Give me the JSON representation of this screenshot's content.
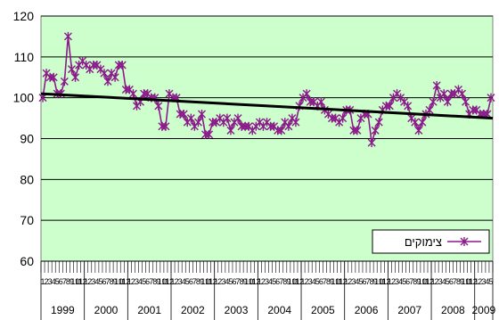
{
  "chart_data": {
    "type": "line",
    "yticks": [
      60,
      70,
      80,
      90,
      100,
      110,
      120
    ],
    "ylim": [
      60,
      120
    ],
    "years": [
      "1999",
      "2000",
      "2001",
      "2002",
      "2003",
      "2004",
      "2005",
      "2006",
      "2007",
      "2008",
      "2009"
    ],
    "month_labels": [
      "1",
      "2",
      "3",
      "4",
      "5",
      "6",
      "7",
      "8",
      "9",
      "10",
      "11",
      "12"
    ],
    "months_in_last_year": 7,
    "grid": "horizontal",
    "legend_position": "bottom-right",
    "colors": {
      "plot_bg": "#ccffcc",
      "series": "#8b1a8b",
      "trend": "#000000",
      "grid": "#000000"
    },
    "series": [
      {
        "name": "צימוקים",
        "values": [
          100,
          106,
          105,
          105,
          101,
          101,
          104,
          115,
          107,
          105,
          108,
          109,
          108,
          107,
          108,
          108,
          107,
          106,
          104,
          106,
          105,
          108,
          108,
          102,
          102,
          101,
          98,
          99,
          101,
          101,
          100,
          100,
          98,
          93,
          93,
          101,
          100,
          100,
          96,
          96,
          94,
          95,
          93,
          94,
          96,
          91,
          91,
          94,
          94,
          95,
          94,
          95,
          92,
          94,
          95,
          93,
          93,
          93,
          92,
          93,
          94,
          93,
          94,
          93,
          93,
          92,
          92,
          94,
          93,
          95,
          94,
          98,
          100,
          101,
          99,
          99,
          98,
          99,
          97,
          96,
          95,
          95,
          94,
          95,
          97,
          97,
          92,
          92,
          95,
          96,
          96,
          89,
          92,
          94,
          97,
          98,
          98,
          100,
          101,
          100,
          99,
          98,
          95,
          94,
          92,
          94,
          96,
          97,
          99,
          103,
          100,
          101,
          99,
          101,
          101,
          102,
          101,
          99,
          96,
          97,
          97,
          96,
          96,
          96,
          100
        ]
      }
    ],
    "trend": {
      "start": 101,
      "end": 95
    }
  }
}
